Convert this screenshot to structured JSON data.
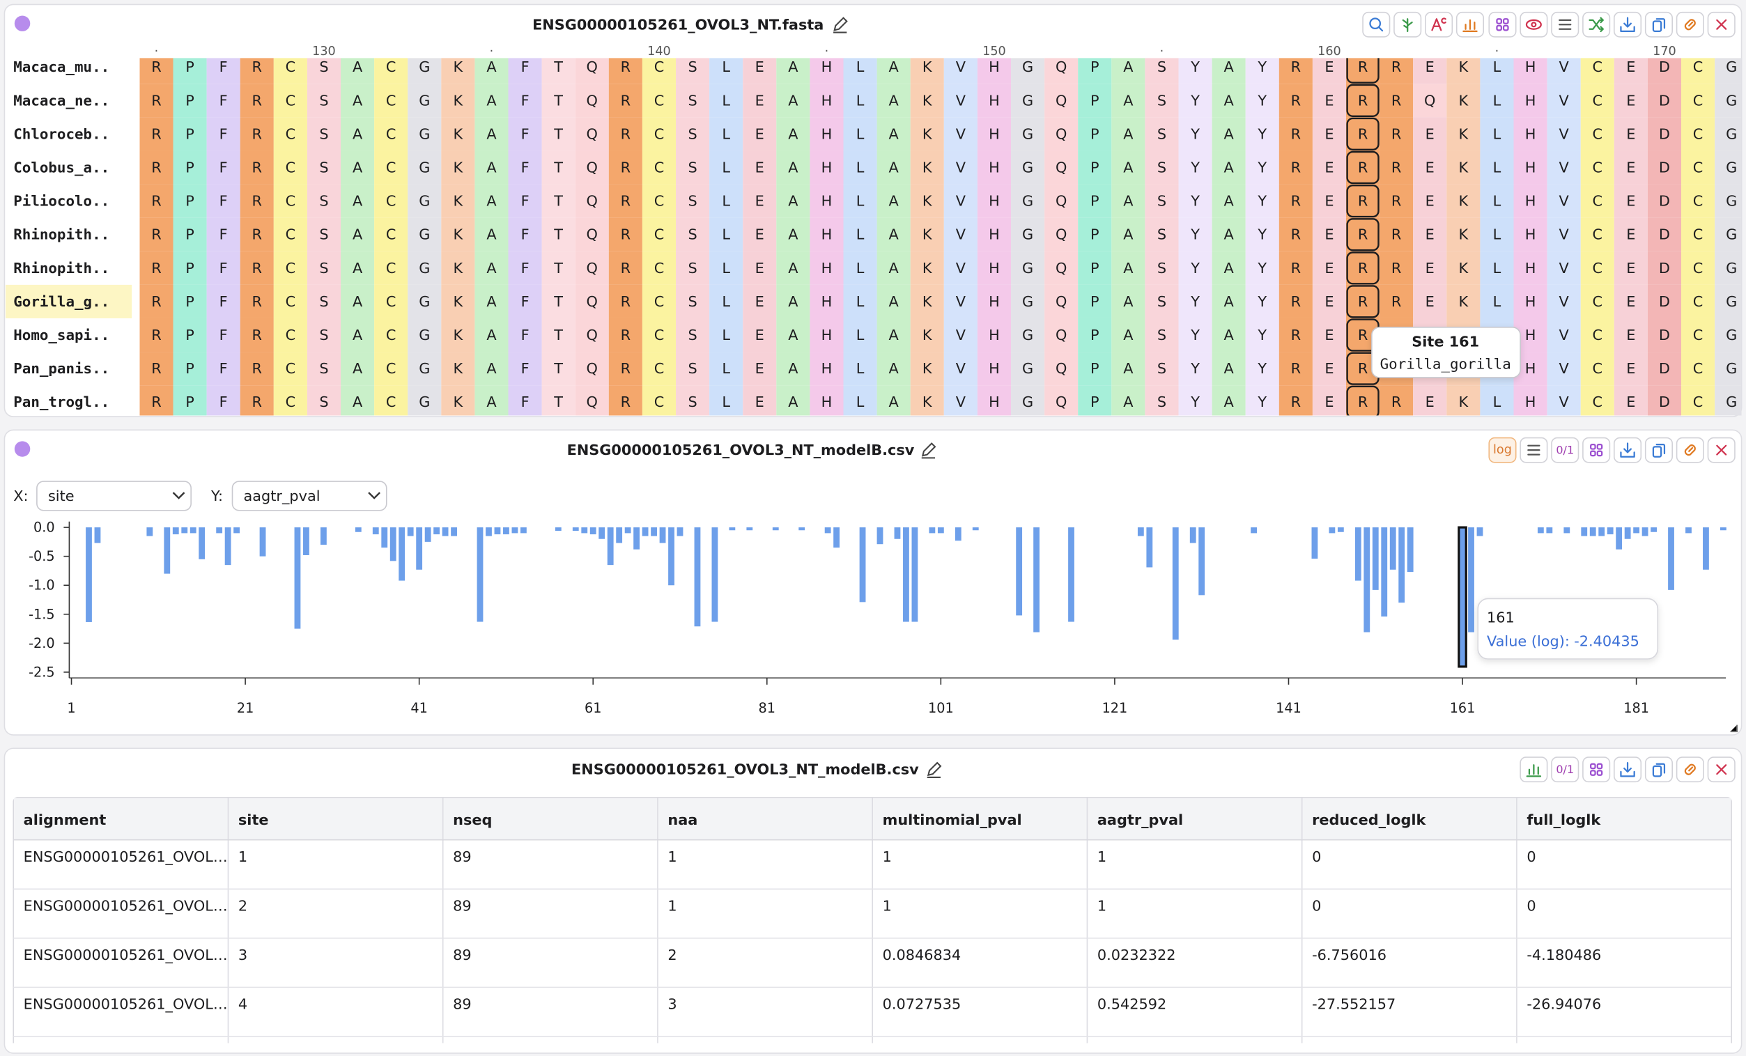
{
  "alignment_panel": {
    "title": "ENSG00000105261_OVOL3_NT.fasta",
    "ruler": [
      "·",
      "130",
      "·",
      "140",
      "·",
      "150",
      "·",
      "160",
      "·",
      "170"
    ],
    "residue_colors": {
      "R": "#f4a76c",
      "P": "#a6efd9",
      "F": "#ddd0f7",
      "C": "#fbf3a0",
      "S": "#f9d5da",
      "A": "#c9f0c9",
      "G": "#e3e3e8",
      "K": "#f9cfb3",
      "T": "#fbdde1",
      "Q": "#fbd6d9",
      "L": "#cde0fa",
      "E": "#f7d1d7",
      "H": "#f4c9ea",
      "V": "#d5e3fb",
      "Y": "#efe6fb",
      "D": "#f3b6b6"
    },
    "sequences": [
      {
        "name": "Macaca_mu..",
        "residues": "RPFRCSACGKAFTQRCSLEAHLAKVHGQPASYAYRERREKLHVCEDCG"
      },
      {
        "name": "Macaca_ne..",
        "residues": "RPFRCSACGKAFTQRCSLEAHLAKVHGQPASYAYRERRQKLHVCEDCG"
      },
      {
        "name": "Chloroceb..",
        "residues": "RPFRCSACGKAFTQRCSLEAHLAKVHGQPASYAYRERREKLHVCEDCG"
      },
      {
        "name": "Colobus_a..",
        "residues": "RPFRCSACGKAFTQRCSLEAHLAKVHGQPASYAYRERREKLHVCEDCG"
      },
      {
        "name": "Piliocolo..",
        "residues": "RPFRCSACGKAFTQRCSLEAHLAKVHGQPASYAYRERREKLHVCEDCG"
      },
      {
        "name": "Rhinopith..",
        "residues": "RPFRCSACGKAFTQRCSLEAHLAKVHGQPASYAYRERREKLHVCEDCG"
      },
      {
        "name": "Rhinopith..",
        "residues": "RPFRCSACGKAFTQRCSLEAHLAKVHGQPASYAYRERREKLHVCEDCG"
      },
      {
        "name": "Gorilla_g..",
        "residues": "RPFRCSACGKAFTQRCSLEAHLAKVHGQPASYAYRERREKLHVCEDCG"
      },
      {
        "name": "Homo_sapi..",
        "residues": "RPFRCSACGKAFTQRCSLEAHLAKVHGQPASYAYRERREKLHVCEDCG"
      },
      {
        "name": "Pan_panis..",
        "residues": "RPFRCSACGKAFTQRCSLEAHLAKVHGQPASYAYRERREKLHVCEDCG"
      },
      {
        "name": "Pan_trogl..",
        "residues": "RPFRCSACGKAFTQRCSLEAHLAKVHGQPASYAYRERREKLHVCEDCG"
      }
    ],
    "highlight_row": 7,
    "selected_column": 36,
    "tooltip": {
      "title": "Site 161",
      "subtitle": "Gorilla_gorilla"
    }
  },
  "chart_panel": {
    "title": "ENSG00000105261_OVOL3_NT_modelB.csv",
    "log_button": "log",
    "binary_button": "0/1",
    "x_label": "X:",
    "x_value": "site",
    "y_label": "Y:",
    "y_value": "aagtr_pval"
  },
  "chart_data": {
    "type": "bar",
    "color": "#6d9fea",
    "x": [
      3,
      4,
      10,
      12,
      13,
      14,
      15,
      16,
      18,
      19,
      20,
      23,
      27,
      28,
      30,
      34,
      36,
      37,
      38,
      39,
      40,
      41,
      42,
      43,
      44,
      45,
      48,
      49,
      50,
      51,
      52,
      53,
      57,
      59,
      60,
      61,
      62,
      63,
      64,
      65,
      66,
      67,
      68,
      69,
      70,
      71,
      73,
      75,
      77,
      79,
      82,
      85,
      88,
      89,
      92,
      94,
      96,
      97,
      98,
      100,
      101,
      103,
      105,
      110,
      112,
      116,
      124,
      125,
      128,
      130,
      131,
      137,
      144,
      146,
      147,
      149,
      150,
      151,
      152,
      153,
      154,
      155,
      161,
      162,
      163,
      170,
      171,
      173,
      175,
      176,
      177,
      178,
      179,
      180,
      181,
      182,
      183,
      185,
      187,
      189,
      191
    ],
    "values": [
      -1.634,
      -0.27,
      -0.15,
      -0.8,
      -0.12,
      -0.1,
      -0.1,
      -0.55,
      -0.1,
      -0.65,
      -0.1,
      -0.5,
      -1.75,
      -0.48,
      -0.3,
      -0.08,
      -0.12,
      -0.35,
      -0.58,
      -0.92,
      -0.15,
      -0.73,
      -0.25,
      -0.12,
      -0.15,
      -0.15,
      -1.63,
      -0.15,
      -0.12,
      -0.12,
      -0.1,
      -0.1,
      -0.06,
      -0.06,
      -0.1,
      -0.12,
      -0.2,
      -0.65,
      -0.27,
      -0.1,
      -0.38,
      -0.15,
      -0.15,
      -0.27,
      -1.0,
      -0.15,
      -1.71,
      -1.63,
      -0.05,
      -0.05,
      -0.05,
      -0.05,
      -0.1,
      -0.35,
      -1.29,
      -0.29,
      -0.2,
      -1.63,
      -1.63,
      -0.1,
      -0.1,
      -0.23,
      -0.05,
      -1.52,
      -1.81,
      -1.63,
      -0.15,
      -0.69,
      -1.94,
      -0.27,
      -1.17,
      -0.1,
      -0.54,
      -0.1,
      -0.08,
      -0.92,
      -1.81,
      -1.08,
      -1.54,
      -0.73,
      -1.3,
      -0.77,
      -2.40435,
      -1.81,
      -0.15,
      -0.1,
      -0.1,
      -0.1,
      -0.15,
      -0.15,
      -0.15,
      -0.12,
      -0.38,
      -0.2,
      -0.1,
      -0.15,
      -0.08,
      -1.08,
      -0.1,
      -0.73,
      -0.05
    ],
    "xlim": [
      0.75,
      191.3
    ],
    "ylim": [
      -2.6,
      0.1
    ],
    "xticks": [
      1,
      21,
      41,
      61,
      81,
      101,
      121,
      141,
      161,
      181
    ],
    "yticks": [
      {
        "value": 0,
        "label": "0.0"
      },
      -0.5,
      {
        "value": -1,
        "label": "-1.0"
      },
      -1.5,
      {
        "value": -2,
        "label": "-2.0"
      },
      -2.5
    ],
    "selected_index": 82,
    "tooltip_label": "Value (log):"
  },
  "table_panel": {
    "title": "ENSG00000105261_OVOL3_NT_modelB.csv",
    "binary_button": "0/1",
    "columns": [
      "alignment",
      "site",
      "nseq",
      "naa",
      "multinomial_pval",
      "aagtr_pval",
      "reduced_loglk",
      "full_loglk"
    ],
    "rows": [
      [
        "ENSG00000105261_OVOL…",
        1,
        89,
        1,
        1,
        1,
        0,
        0
      ],
      [
        "ENSG00000105261_OVOL…",
        2,
        89,
        1,
        1,
        1,
        0,
        0
      ],
      [
        "ENSG00000105261_OVOL…",
        3,
        89,
        2,
        0.0846834,
        0.0232322,
        -6.756016,
        -4.180486
      ],
      [
        "ENSG00000105261_OVOL…",
        4,
        89,
        3,
        0.0727535,
        0.542592,
        -27.552157,
        -26.94076
      ]
    ]
  }
}
